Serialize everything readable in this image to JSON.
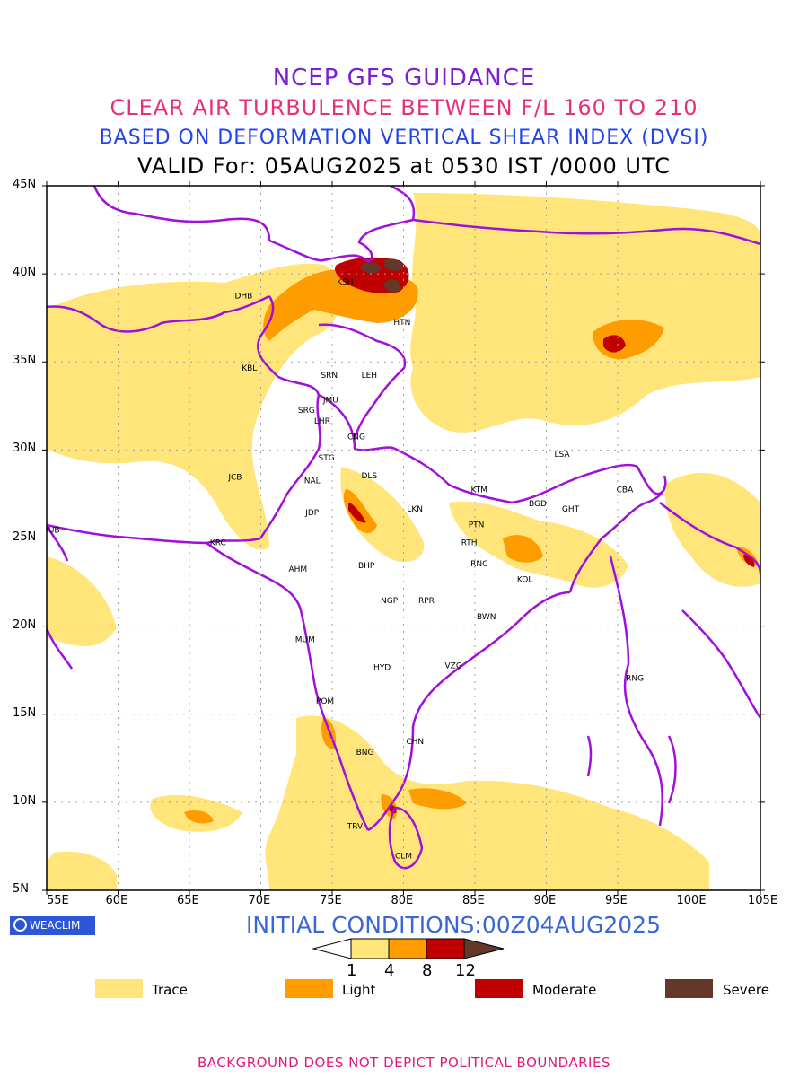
{
  "header": {
    "line1": "NCEP GFS GUIDANCE",
    "line2": "CLEAR AIR TURBULENCE BETWEEN F/L 160 TO 210",
    "line3": "BASED ON DEFORMATION VERTICAL SHEAR INDEX (DVSI)",
    "line4": "VALID For: 05AUG2025 at 0530 IST /0000 UTC"
  },
  "axes": {
    "lon_labels": [
      "55E",
      "60E",
      "65E",
      "70E",
      "75E",
      "80E",
      "85E",
      "90E",
      "95E",
      "100E",
      "105E"
    ],
    "lat_labels": [
      "45N",
      "40N",
      "35N",
      "30N",
      "25N",
      "20N",
      "15N",
      "10N",
      "5N"
    ]
  },
  "stations": [
    {
      "code": "KSH",
      "lon": 75.9,
      "lat": 39.4
    },
    {
      "code": "DHB",
      "lon": 68.8,
      "lat": 38.6
    },
    {
      "code": "HTN",
      "lon": 79.9,
      "lat": 37.1
    },
    {
      "code": "KBL",
      "lon": 69.2,
      "lat": 34.5
    },
    {
      "code": "SRN",
      "lon": 74.8,
      "lat": 34.1
    },
    {
      "code": "LEH",
      "lon": 77.6,
      "lat": 34.1
    },
    {
      "code": "JMU",
      "lon": 74.9,
      "lat": 32.7
    },
    {
      "code": "SRG",
      "lon": 73.2,
      "lat": 32.1
    },
    {
      "code": "LHR",
      "lon": 74.3,
      "lat": 31.5
    },
    {
      "code": "CNG",
      "lon": 76.7,
      "lat": 30.6
    },
    {
      "code": "LSA",
      "lon": 91.1,
      "lat": 29.6
    },
    {
      "code": "STG",
      "lon": 74.6,
      "lat": 29.4
    },
    {
      "code": "DLS",
      "lon": 77.6,
      "lat": 28.4
    },
    {
      "code": "JCB",
      "lon": 68.2,
      "lat": 28.3
    },
    {
      "code": "NAL",
      "lon": 73.6,
      "lat": 28.1
    },
    {
      "code": "KTM",
      "lon": 85.3,
      "lat": 27.6
    },
    {
      "code": "CBA",
      "lon": 95.5,
      "lat": 27.6
    },
    {
      "code": "BGD",
      "lon": 89.4,
      "lat": 26.8
    },
    {
      "code": "GHT",
      "lon": 91.7,
      "lat": 26.5
    },
    {
      "code": "JDP",
      "lon": 73.6,
      "lat": 26.3
    },
    {
      "code": "LKN",
      "lon": 80.8,
      "lat": 26.5
    },
    {
      "code": "PTN",
      "lon": 85.1,
      "lat": 25.6
    },
    {
      "code": "DUB",
      "lon": 55.3,
      "lat": 25.3
    },
    {
      "code": "RTH",
      "lon": 84.6,
      "lat": 24.6
    },
    {
      "code": "KRC",
      "lon": 67.0,
      "lat": 24.6
    },
    {
      "code": "BHP",
      "lon": 77.4,
      "lat": 23.3
    },
    {
      "code": "AHM",
      "lon": 72.6,
      "lat": 23.1
    },
    {
      "code": "RNC",
      "lon": 85.3,
      "lat": 23.4
    },
    {
      "code": "KOL",
      "lon": 88.5,
      "lat": 22.5
    },
    {
      "code": "NGP",
      "lon": 79.0,
      "lat": 21.3
    },
    {
      "code": "RPR",
      "lon": 81.6,
      "lat": 21.3
    },
    {
      "code": "BWN",
      "lon": 85.8,
      "lat": 20.4
    },
    {
      "code": "MUM",
      "lon": 73.1,
      "lat": 19.1
    },
    {
      "code": "HYD",
      "lon": 78.5,
      "lat": 17.5
    },
    {
      "code": "VZG",
      "lon": 83.5,
      "lat": 17.6
    },
    {
      "code": "RNG",
      "lon": 96.2,
      "lat": 16.9
    },
    {
      "code": "POM",
      "lon": 74.5,
      "lat": 15.6
    },
    {
      "code": "CHN",
      "lon": 80.8,
      "lat": 13.3
    },
    {
      "code": "BNG",
      "lon": 77.3,
      "lat": 12.7
    },
    {
      "code": "TRV",
      "lon": 76.6,
      "lat": 8.5
    },
    {
      "code": "CLM",
      "lon": 80.0,
      "lat": 6.8
    }
  ],
  "bottom": {
    "logo_text": "WEACLIM",
    "initial_conditions": "INITIAL CONDITIONS:00Z04AUG2025",
    "footer": "BACKGROUND DOES NOT DEPICT POLITICAL BOUNDARIES"
  },
  "colorbar": {
    "ticks": [
      "1",
      "4",
      "8",
      "12"
    ],
    "colors": [
      "#ffe57a",
      "#ff9c00",
      "#c00000",
      "#63372a"
    ]
  },
  "legend": [
    {
      "label": "Trace",
      "color": "#ffe57a"
    },
    {
      "label": "Light",
      "color": "#ff9c00"
    },
    {
      "label": "Moderate",
      "color": "#c00000"
    },
    {
      "label": "Severe",
      "color": "#63372a"
    }
  ],
  "colors": {
    "boundary": "#a010d8",
    "grid": "#a0a0a0"
  }
}
